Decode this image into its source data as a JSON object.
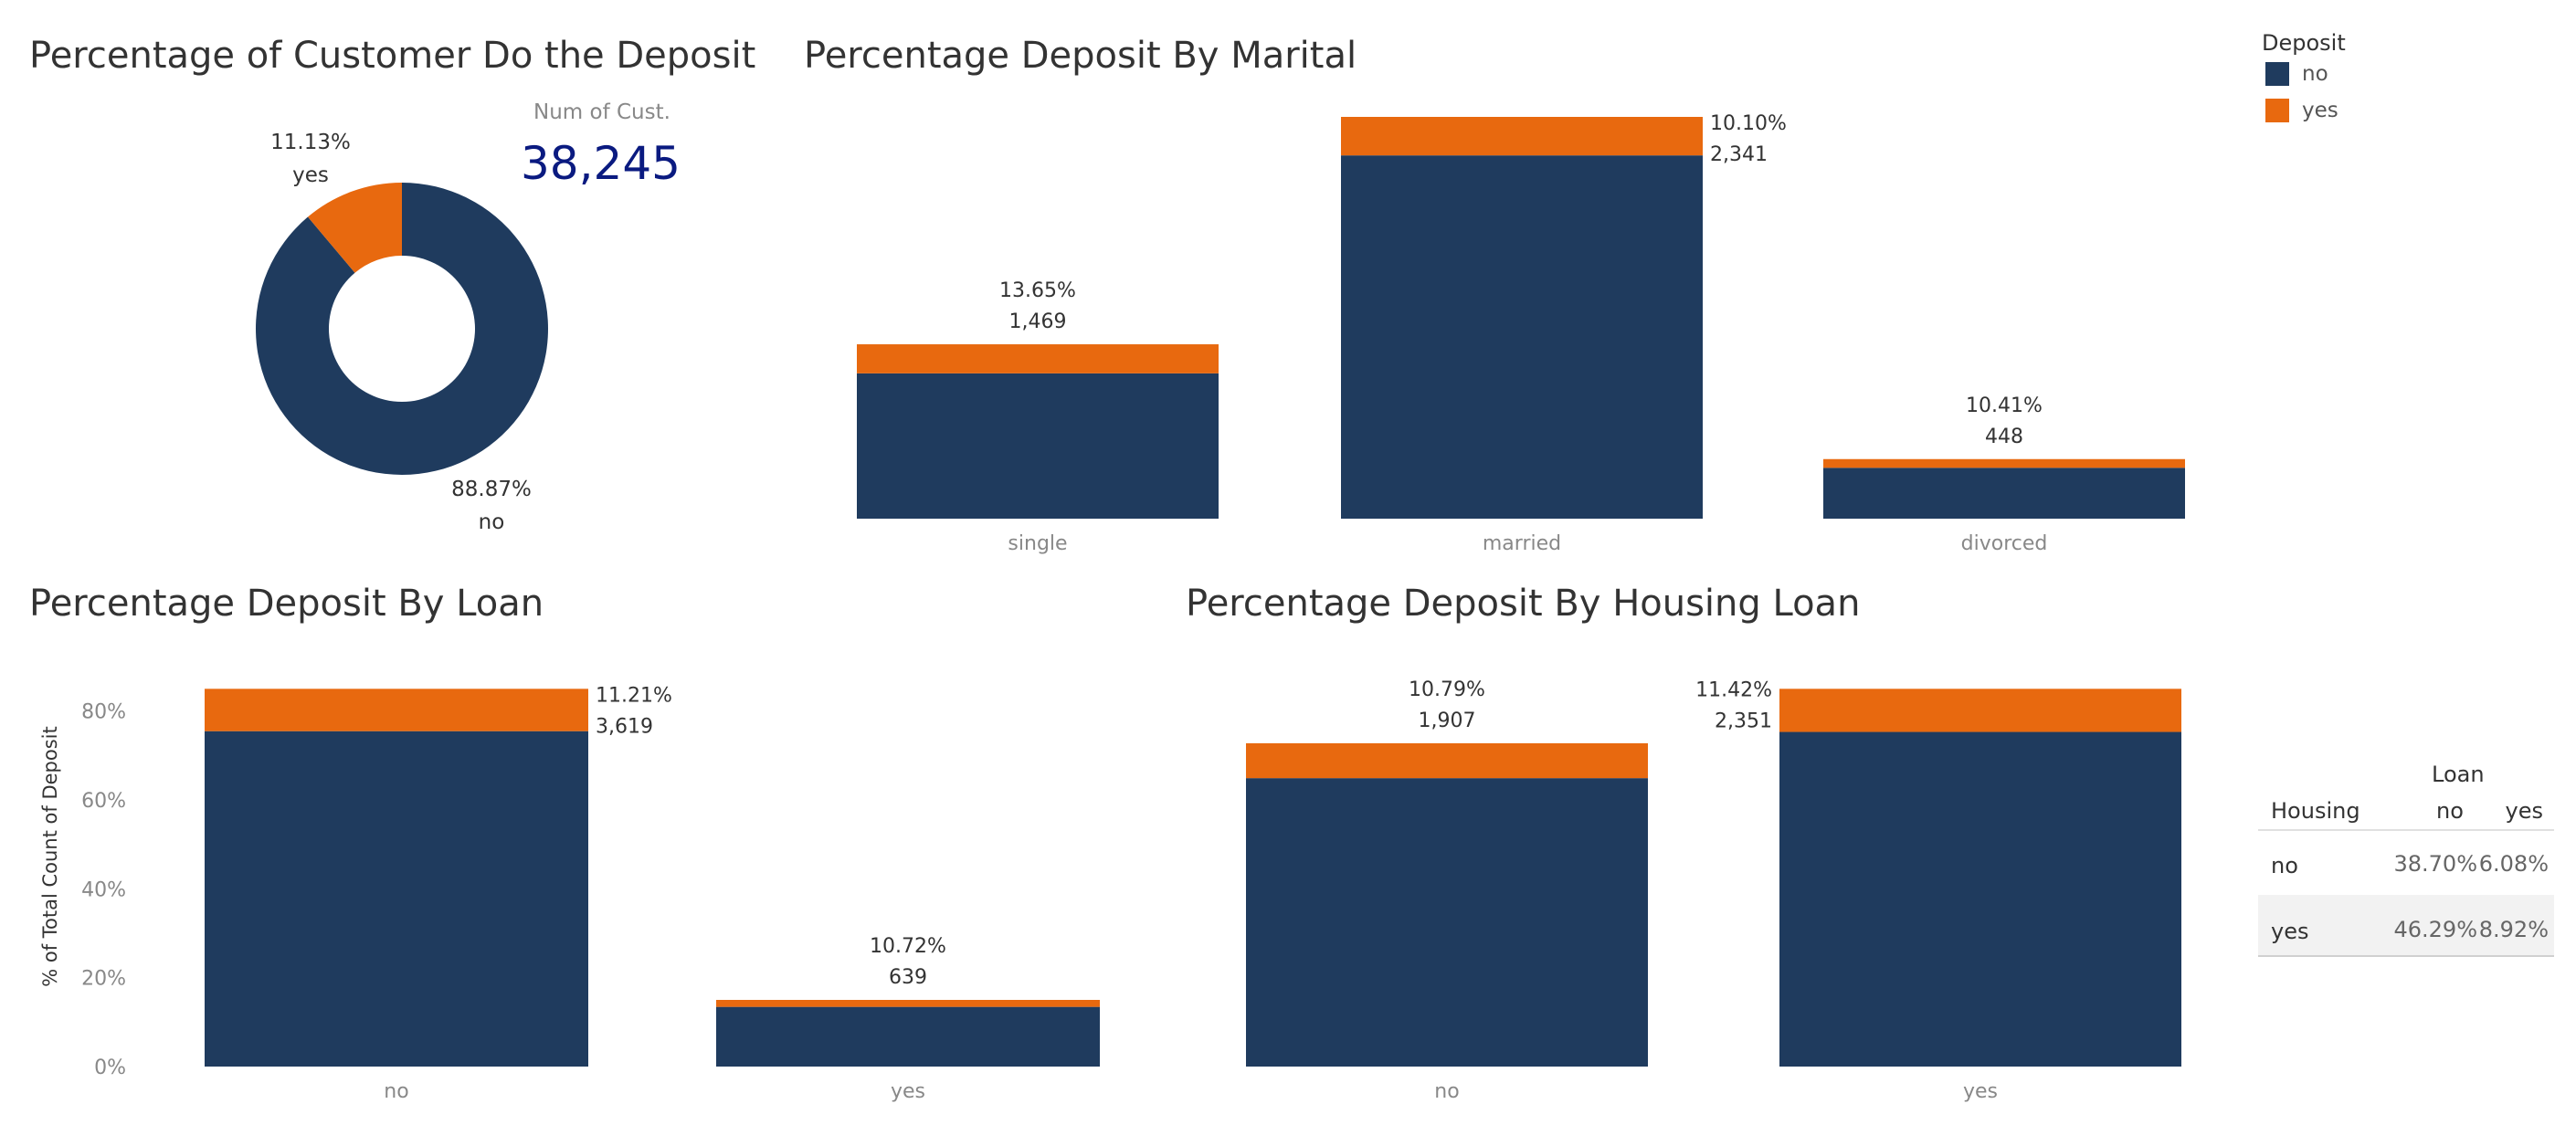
{
  "colors": {
    "no": "#1f3b5e",
    "yes": "#e8690f",
    "axis_text": "#888888",
    "label_text": "#333333",
    "kpi": "#0a1a80"
  },
  "legend": {
    "title": "Deposit",
    "items": [
      {
        "label": "no",
        "color": "#1f3b5e"
      },
      {
        "label": "yes",
        "color": "#e8690f"
      }
    ]
  },
  "kpi": {
    "label": "Num of Cust.",
    "value": "38,245"
  },
  "cross_table": {
    "col_header": "Loan",
    "row_header": "Housing",
    "columns": [
      "no",
      "yes"
    ],
    "rows": [
      {
        "label": "no",
        "values": [
          "38.70%",
          "6.08%"
        ]
      },
      {
        "label": "yes",
        "values": [
          "46.29%",
          "8.92%"
        ]
      }
    ]
  },
  "chart_data": [
    {
      "type": "pie",
      "title": "Percentage of Customer Do the Deposit",
      "donut": true,
      "slices": [
        {
          "category": "no",
          "value": 88.87,
          "pct_label": "88.87%"
        },
        {
          "category": "yes",
          "value": 11.13,
          "pct_label": "11.13%"
        }
      ]
    },
    {
      "type": "bar",
      "stacked": true,
      "title": "Percentage Deposit By Marital",
      "categories": [
        "single",
        "married",
        "divorced"
      ],
      "series": [
        {
          "name": "no",
          "values": [
            0.2,
            0.5,
            0.07
          ]
        },
        {
          "name": "yes",
          "values": [
            0.04,
            0.053,
            0.012
          ]
        }
      ],
      "top_labels": [
        {
          "pct": "13.65%",
          "count": "1,469"
        },
        {
          "pct": "10.10%",
          "count": "2,341"
        },
        {
          "pct": "10.41%",
          "count": "448"
        }
      ],
      "ylim": [
        0,
        0.553
      ]
    },
    {
      "type": "bar",
      "stacked": true,
      "title": "Percentage Deposit By Loan",
      "ylabel": "% of Total Count of Deposit",
      "categories": [
        "no",
        "yes"
      ],
      "series": [
        {
          "name": "no",
          "values": [
            75.47,
            13.43
          ]
        },
        {
          "name": "yes",
          "values": [
            9.53,
            1.57
          ]
        }
      ],
      "top_labels": [
        {
          "pct": "11.21%",
          "count": "3,619"
        },
        {
          "pct": "10.72%",
          "count": "639"
        }
      ],
      "yticks": [
        "0%",
        "20%",
        "40%",
        "60%",
        "80%"
      ],
      "ytick_values": [
        0,
        20,
        40,
        60,
        80
      ],
      "ylim": [
        0,
        90
      ]
    },
    {
      "type": "bar",
      "stacked": true,
      "title": "Percentage Deposit By Housing Loan",
      "categories": [
        "no",
        "yes"
      ],
      "series": [
        {
          "name": "no",
          "values": [
            64.9,
            75.3
          ]
        },
        {
          "name": "yes",
          "values": [
            7.85,
            9.7
          ]
        }
      ],
      "top_labels": [
        {
          "pct": "10.79%",
          "count": "1,907"
        },
        {
          "pct": "11.42%",
          "count": "2,351"
        }
      ],
      "ylim": [
        0,
        90
      ]
    }
  ]
}
